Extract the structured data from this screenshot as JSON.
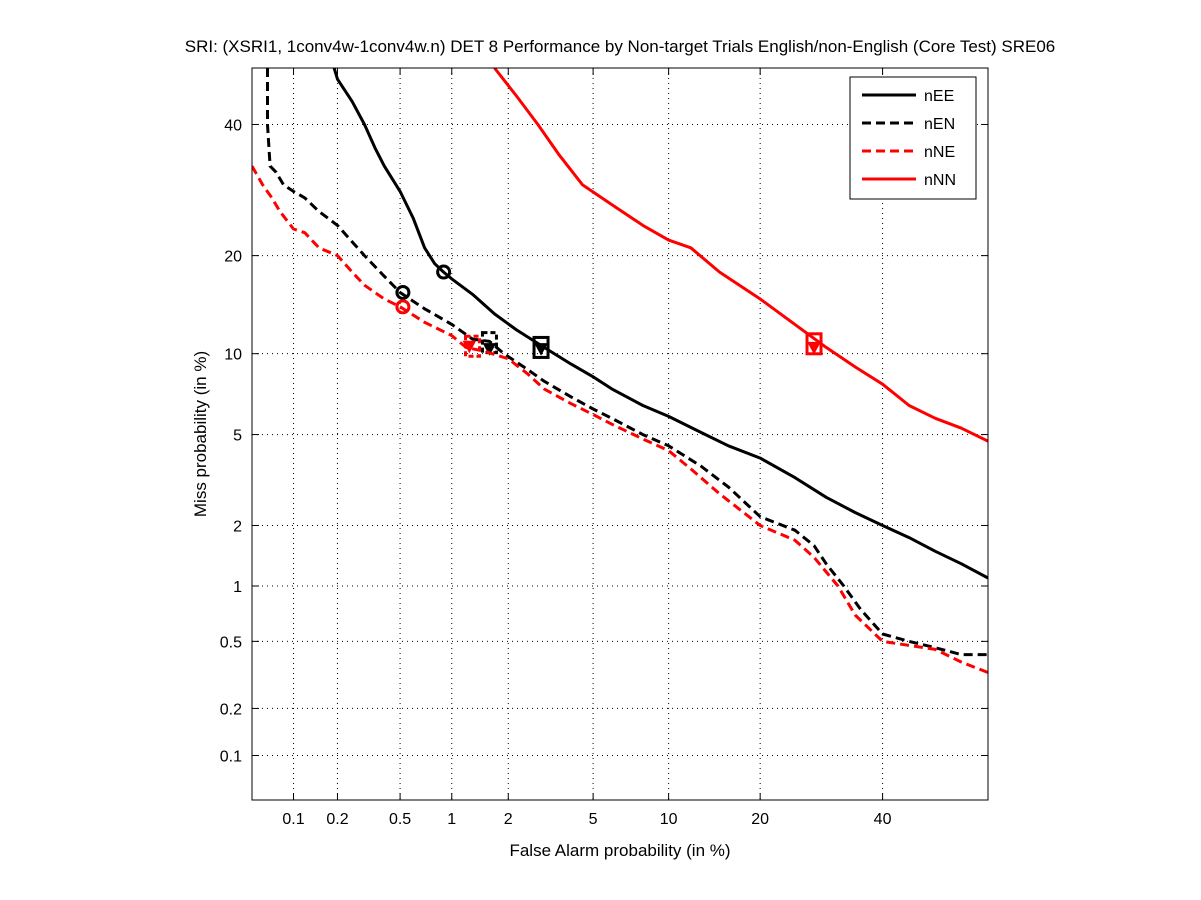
{
  "chart_data": {
    "type": "line",
    "title": "SRI: (XSRI1, 1conv4w-1conv4w.n) DET 8 Performance by Non-target Trials English/non-English (Core Test) SRE06",
    "xlabel": "False Alarm probability (in %)",
    "ylabel": "Miss probability (in %)",
    "x_scale": "probit",
    "y_scale": "probit",
    "xlim": [
      0.05,
      60
    ],
    "ylim": [
      0.05,
      50
    ],
    "x_ticks": [
      0.1,
      0.2,
      0.5,
      1,
      2,
      5,
      10,
      20,
      40
    ],
    "x_tick_labels": [
      "0.1",
      "0.2",
      "0.5",
      "1",
      "2",
      "5",
      "10",
      "20",
      "40"
    ],
    "y_ticks": [
      0.1,
      0.2,
      0.5,
      1,
      2,
      5,
      10,
      20,
      40
    ],
    "y_tick_labels": [
      "0.1",
      "0.2",
      "0.5",
      "1",
      "2",
      "5",
      "10",
      "20",
      "40"
    ],
    "grid": true,
    "legend_position": "top-right",
    "series": [
      {
        "name": "nEE",
        "color": "#000000",
        "dash": "solid",
        "points": [
          [
            0.19,
            50
          ],
          [
            0.2,
            48
          ],
          [
            0.25,
            44
          ],
          [
            0.3,
            40
          ],
          [
            0.35,
            36
          ],
          [
            0.4,
            33
          ],
          [
            0.5,
            29
          ],
          [
            0.6,
            25
          ],
          [
            0.7,
            21
          ],
          [
            0.8,
            19
          ],
          [
            0.9,
            18
          ],
          [
            1.0,
            17.2
          ],
          [
            1.3,
            15.5
          ],
          [
            1.7,
            13.5
          ],
          [
            2.2,
            12
          ],
          [
            3,
            10.5
          ],
          [
            4,
            9.2
          ],
          [
            5,
            8.3
          ],
          [
            6,
            7.5
          ],
          [
            8,
            6.5
          ],
          [
            10,
            5.9
          ],
          [
            13,
            5.1
          ],
          [
            16,
            4.5
          ],
          [
            20,
            4.0
          ],
          [
            25,
            3.3
          ],
          [
            30,
            2.7
          ],
          [
            35,
            2.3
          ],
          [
            40,
            2.0
          ],
          [
            45,
            1.75
          ],
          [
            50,
            1.5
          ],
          [
            55,
            1.3
          ],
          [
            60,
            1.1
          ]
        ],
        "markers": [
          {
            "shape": "circle",
            "x": 0.9,
            "y": 18
          },
          {
            "shape": "square",
            "x": 2.9,
            "y": 10.5
          },
          {
            "shape": "triangle",
            "x": 2.9,
            "y": 10.4
          }
        ]
      },
      {
        "name": "nEN",
        "color": "#000000",
        "dash": "dashed",
        "points": [
          [
            0.065,
            50
          ],
          [
            0.065,
            40
          ],
          [
            0.068,
            33
          ],
          [
            0.075,
            32
          ],
          [
            0.085,
            30
          ],
          [
            0.1,
            29
          ],
          [
            0.12,
            28
          ],
          [
            0.15,
            26
          ],
          [
            0.2,
            24
          ],
          [
            0.3,
            20
          ],
          [
            0.4,
            17.5
          ],
          [
            0.5,
            15.7
          ],
          [
            0.7,
            14
          ],
          [
            1.0,
            12.5
          ],
          [
            1.3,
            11.2
          ],
          [
            1.6,
            11
          ],
          [
            1.9,
            10
          ],
          [
            2.5,
            8.8
          ],
          [
            3,
            8
          ],
          [
            4,
            7
          ],
          [
            5,
            6.3
          ],
          [
            6,
            5.8
          ],
          [
            8,
            5
          ],
          [
            10,
            4.5
          ],
          [
            13,
            3.7
          ],
          [
            16,
            3.0
          ],
          [
            20,
            2.2
          ],
          [
            25,
            1.9
          ],
          [
            28,
            1.6
          ],
          [
            30,
            1.3
          ],
          [
            33,
            1.0
          ],
          [
            36,
            0.75
          ],
          [
            40,
            0.55
          ],
          [
            45,
            0.5
          ],
          [
            50,
            0.46
          ],
          [
            55,
            0.42
          ],
          [
            60,
            0.42
          ]
        ],
        "markers": [
          {
            "shape": "circle",
            "x": 0.52,
            "y": 15.7
          },
          {
            "shape": "square",
            "x": 1.6,
            "y": 10.9
          },
          {
            "shape": "triangle",
            "x": 1.6,
            "y": 10.4
          }
        ]
      },
      {
        "name": "nNE",
        "color": "#ff0000",
        "dash": "dashed",
        "points": [
          [
            0.05,
            33
          ],
          [
            0.06,
            30
          ],
          [
            0.07,
            28
          ],
          [
            0.08,
            26
          ],
          [
            0.1,
            23.5
          ],
          [
            0.12,
            23
          ],
          [
            0.15,
            21
          ],
          [
            0.2,
            20
          ],
          [
            0.25,
            18
          ],
          [
            0.3,
            16.5
          ],
          [
            0.4,
            15
          ],
          [
            0.5,
            14.2
          ],
          [
            0.7,
            12.7
          ],
          [
            1.0,
            11.5
          ],
          [
            1.2,
            10.5
          ],
          [
            1.5,
            10.2
          ],
          [
            2,
            9.6
          ],
          [
            2.5,
            8.5
          ],
          [
            3,
            7.5
          ],
          [
            4,
            6.6
          ],
          [
            5,
            6
          ],
          [
            6,
            5.5
          ],
          [
            8,
            4.8
          ],
          [
            10,
            4.3
          ],
          [
            12,
            3.6
          ],
          [
            15,
            2.8
          ],
          [
            20,
            2.0
          ],
          [
            25,
            1.7
          ],
          [
            28,
            1.4
          ],
          [
            32,
            1.0
          ],
          [
            35,
            0.7
          ],
          [
            40,
            0.5
          ],
          [
            50,
            0.45
          ],
          [
            55,
            0.38
          ],
          [
            60,
            0.33
          ]
        ],
        "markers": [
          {
            "shape": "circle",
            "x": 0.52,
            "y": 14.2
          },
          {
            "shape": "square",
            "x": 1.3,
            "y": 10.6
          },
          {
            "shape": "triangle",
            "x": 1.25,
            "y": 10.6
          }
        ]
      },
      {
        "name": "nNN",
        "color": "#ff0000",
        "dash": "solid",
        "points": [
          [
            1.7,
            50
          ],
          [
            2.2,
            45
          ],
          [
            2.8,
            40
          ],
          [
            3.5,
            35
          ],
          [
            4.5,
            30
          ],
          [
            6,
            27
          ],
          [
            8,
            24
          ],
          [
            10,
            22
          ],
          [
            12,
            21
          ],
          [
            15,
            18
          ],
          [
            20,
            15
          ],
          [
            25,
            12.5
          ],
          [
            30,
            10.5
          ],
          [
            35,
            9
          ],
          [
            40,
            7.8
          ],
          [
            45,
            6.5
          ],
          [
            50,
            5.8
          ],
          [
            55,
            5.3
          ],
          [
            60,
            4.7
          ]
        ],
        "markers": [
          {
            "shape": "square",
            "x": 28,
            "y": 10.8
          },
          {
            "shape": "triangle",
            "x": 28,
            "y": 10.5
          }
        ]
      }
    ]
  }
}
